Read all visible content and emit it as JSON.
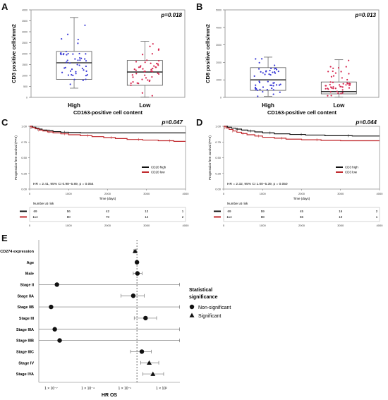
{
  "chart_data": [
    {
      "panel": "A",
      "type": "box",
      "pvalue": "p=0.018",
      "ylabel": "CD3 positive cells/mm2",
      "xlabel": "CD163-positive cell content",
      "categories": [
        "High",
        "Low"
      ],
      "ylim": [
        0,
        4000
      ],
      "yticks": [
        0,
        500,
        1000,
        1500,
        2000,
        2500,
        3000,
        3500,
        4000
      ],
      "boxes": [
        {
          "name": "High",
          "min": 420,
          "q1": 820,
          "median": 1580,
          "q3": 2100,
          "max": 3650
        },
        {
          "name": "Low",
          "min": 10,
          "q1": 550,
          "median": 1160,
          "q3": 1690,
          "max": 2560
        }
      ],
      "points_color": [
        "#3b3bd6",
        "#d62850"
      ]
    },
    {
      "panel": "B",
      "type": "box",
      "pvalue": "p=0.013",
      "ylabel": "CD8 positive cells/mm2",
      "xlabel": "CD163-positive cell content",
      "categories": [
        "High",
        "Low"
      ],
      "ylim": [
        0,
        5000
      ],
      "yticks": [
        0,
        1000,
        2000,
        3000,
        4000,
        5000
      ],
      "boxes": [
        {
          "name": "High",
          "min": 60,
          "q1": 400,
          "median": 1000,
          "q3": 1700,
          "max": 2300
        },
        {
          "name": "Low",
          "min": 10,
          "q1": 200,
          "median": 330,
          "q3": 880,
          "max": 2150
        }
      ],
      "points_color": [
        "#3b3bd6",
        "#d62850"
      ]
    },
    {
      "panel": "C",
      "type": "line",
      "pvalue": "p=0.047",
      "ylabel": "Progression-free survival (PFS)",
      "xlabel": "Time (days)",
      "xlim": [
        0,
        4000
      ],
      "ylim": [
        0,
        1
      ],
      "xticks": [
        0,
        1000,
        2000,
        3000,
        4000
      ],
      "yticks": [
        0.0,
        0.25,
        0.5,
        0.75,
        1.0
      ],
      "series": [
        {
          "name": "CD20 high",
          "color": "#111111",
          "x": [
            0,
            80,
            160,
            240,
            320,
            450,
            600,
            800,
            1000,
            1300,
            4000
          ],
          "y": [
            1.0,
            0.985,
            0.97,
            0.955,
            0.94,
            0.93,
            0.915,
            0.905,
            0.9,
            0.895,
            0.895
          ]
        },
        {
          "name": "CD20 low",
          "color": "#c0282c",
          "x": [
            0,
            60,
            140,
            240,
            340,
            460,
            600,
            800,
            1000,
            1300,
            1600,
            1900,
            2200,
            2500,
            2900,
            3300,
            3700,
            4000
          ],
          "y": [
            1.0,
            0.98,
            0.96,
            0.94,
            0.925,
            0.91,
            0.895,
            0.88,
            0.865,
            0.85,
            0.835,
            0.82,
            0.805,
            0.79,
            0.78,
            0.77,
            0.76,
            0.76
          ]
        }
      ],
      "annotation": "HR = 2.41, 95% CI 0.98–5.89, p = 0.054",
      "risk_title": "Number at risk",
      "risk_rows": [
        {
          "color": "#111111",
          "values": [
            "69",
            "56",
            "42",
            "12",
            "1"
          ]
        },
        {
          "color": "#c0282c",
          "values": [
            "114",
            "80",
            "70",
            "14",
            "2"
          ]
        }
      ],
      "risk_xticks": [
        "0",
        "1000",
        "2000",
        "3000",
        "4000"
      ]
    },
    {
      "panel": "D",
      "type": "line",
      "pvalue": "p=0.044",
      "ylabel": "Progression-free survival (PFS)",
      "xlabel": "Time (days)",
      "xlim": [
        0,
        4000
      ],
      "ylim": [
        0,
        1
      ],
      "xticks": [
        0,
        1000,
        2000,
        3000,
        4000
      ],
      "yticks": [
        0.0,
        0.25,
        0.5,
        0.75,
        1.0
      ],
      "series": [
        {
          "name": "CD3 high",
          "color": "#111111",
          "x": [
            0,
            100,
            200,
            320,
            460,
            620,
            800,
            1000,
            1300,
            1700,
            2100,
            2600,
            3300,
            4000
          ],
          "y": [
            1.0,
            0.985,
            0.97,
            0.955,
            0.94,
            0.925,
            0.91,
            0.895,
            0.88,
            0.87,
            0.86,
            0.85,
            0.845,
            0.845
          ]
        },
        {
          "name": "CD3 low",
          "color": "#c0282c",
          "x": [
            0,
            60,
            140,
            240,
            340,
            460,
            600,
            800,
            1000,
            1300,
            1600,
            2000,
            2500,
            3000,
            4000
          ],
          "y": [
            1.0,
            0.975,
            0.95,
            0.925,
            0.905,
            0.885,
            0.865,
            0.845,
            0.825,
            0.81,
            0.795,
            0.785,
            0.775,
            0.77,
            0.77
          ]
        }
      ],
      "annotation": "HR = 2.32, 95% CI 1.00–5.39, p = 0.050",
      "risk_title": "Number at risk",
      "risk_rows": [
        {
          "color": "#111111",
          "values": [
            "69",
            "59",
            "45",
            "16",
            "2"
          ]
        },
        {
          "color": "#c0282c",
          "values": [
            "114",
            "88",
            "66",
            "10",
            "1"
          ]
        }
      ],
      "risk_xticks": [
        "0",
        "1000",
        "2000",
        "3000",
        "4000"
      ]
    },
    {
      "panel": "E",
      "type": "forest",
      "xlabel": "HR OS",
      "xscale": "log",
      "xlim_log10": [
        -8,
        3.5
      ],
      "xticks": [
        {
          "label": "1 × 10⁻⁷",
          "log10": -7
        },
        {
          "label": "1 × 10⁻⁴",
          "log10": -4
        },
        {
          "label": "1 × 10⁻¹",
          "log10": -1
        },
        {
          "label": "1 × 10²",
          "log10": 2
        }
      ],
      "reference_log10": 0,
      "rows": [
        {
          "label": "CD274 expression",
          "est": 0.7,
          "lo": 0.55,
          "hi": 0.9,
          "sig": true
        },
        {
          "label": "Age",
          "est": 1.0,
          "lo": 0.95,
          "hi": 1.05,
          "sig": false
        },
        {
          "label": "Male",
          "est": 1.1,
          "lo": 0.5,
          "hi": 2.6,
          "sig": false
        },
        {
          "label": "Stage II",
          "est": 3e-07,
          "lo": null,
          "hi": 3000,
          "sig": false
        },
        {
          "label": "Stage IIA",
          "est": 0.5,
          "lo": 0.05,
          "hi": 4.0,
          "sig": false
        },
        {
          "label": "Stage IIB",
          "est": 1e-07,
          "lo": null,
          "hi": 3000,
          "sig": false
        },
        {
          "label": "Stage III",
          "est": 5.0,
          "lo": 0.6,
          "hi": 40,
          "sig": false
        },
        {
          "label": "Stage IIIA",
          "est": 2e-07,
          "lo": null,
          "hi": 3000,
          "sig": false
        },
        {
          "label": "Stage IIIB",
          "est": 5e-07,
          "lo": null,
          "hi": 3000,
          "sig": false
        },
        {
          "label": "Stage IIIC",
          "est": 2.5,
          "lo": 0.3,
          "hi": 15,
          "sig": false
        },
        {
          "label": "Stage IV",
          "est": 10,
          "lo": 2,
          "hi": 60,
          "sig": true
        },
        {
          "label": "Stage IVA",
          "est": 20,
          "lo": 3,
          "hi": 150,
          "sig": true
        }
      ],
      "legend_title": "Statistical significance",
      "legend": [
        {
          "label": "Non-significant",
          "symbol": "circle"
        },
        {
          "label": "Significant",
          "symbol": "triangle"
        }
      ]
    }
  ]
}
